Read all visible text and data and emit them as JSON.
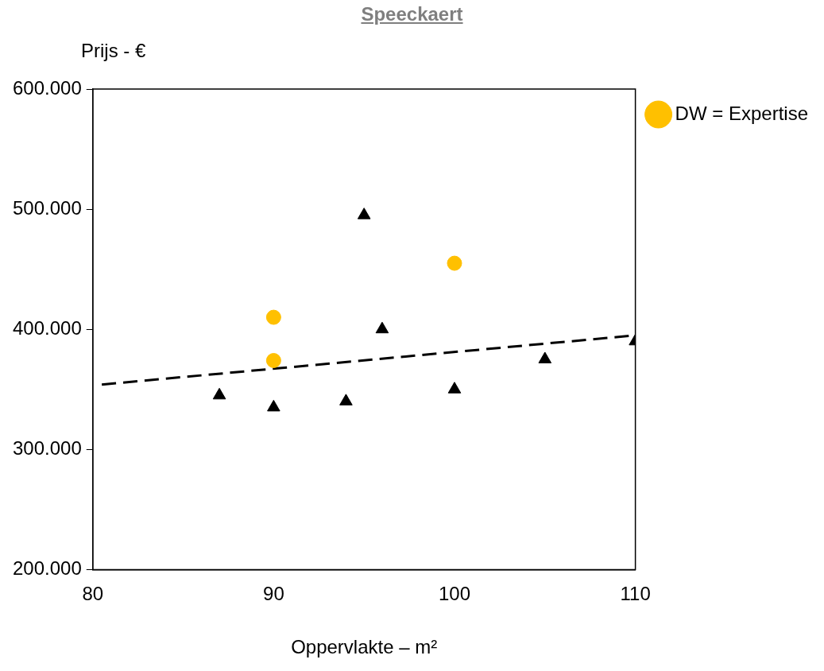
{
  "chart_data": {
    "type": "scatter",
    "title": "Speeckaert",
    "xlabel": "Oppervlakte – m²",
    "ylabel": "Prijs - €",
    "series": [
      {
        "name": "DW = Expertise",
        "color": "#ffc000",
        "marker": "circle",
        "x": [
          90,
          90,
          100
        ],
        "values": [
          410000,
          374000,
          455000
        ]
      },
      {
        "color": "#000000",
        "marker": "triangle",
        "x": [
          87,
          90,
          94,
          95,
          96,
          100,
          105,
          110
        ],
        "values": [
          345000,
          335000,
          340000,
          495000,
          400000,
          350000,
          375000,
          390000
        ]
      },
      {
        "type": "line",
        "color": "#000000",
        "line_style": "dashed",
        "marker": "none",
        "x": [
          80.5,
          110
        ],
        "values": [
          354000,
          395000
        ]
      }
    ],
    "xlim": [
      80,
      110
    ],
    "xticks": [
      80,
      90,
      100,
      110
    ],
    "ylim": [
      200000,
      600000
    ],
    "yticks": [
      {
        "value": 200000,
        "label": "200.000"
      },
      {
        "value": 300000,
        "label": "300.000"
      },
      {
        "value": 400000,
        "label": "400.000"
      },
      {
        "value": 500000,
        "label": "500.000"
      },
      {
        "value": 600000,
        "label": "600.000"
      }
    ],
    "grid": false,
    "legend": "top right"
  }
}
